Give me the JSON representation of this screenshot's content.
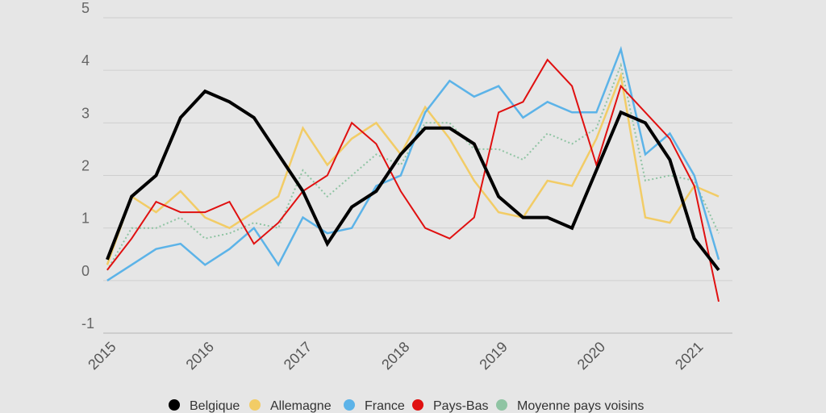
{
  "chart_data": {
    "type": "line",
    "title": "",
    "xlabel": "",
    "ylabel": "",
    "ylim": [
      -1,
      5
    ],
    "yticks": [
      "5",
      "4",
      "3",
      "2",
      "1",
      "0",
      "-1"
    ],
    "x_tick_labels": [
      "2015",
      "2016",
      "2017",
      "2018",
      "2019",
      "2020",
      "2021"
    ],
    "x": [
      2015.0,
      2015.25,
      2015.5,
      2015.75,
      2016.0,
      2016.25,
      2016.5,
      2016.75,
      2017.0,
      2017.25,
      2017.5,
      2017.75,
      2018.0,
      2018.25,
      2018.5,
      2018.75,
      2019.0,
      2019.25,
      2019.5,
      2019.75,
      2020.0,
      2020.25,
      2020.5,
      2020.75,
      2021.0,
      2021.25
    ],
    "grid": true,
    "legend_position": "bottom",
    "series": [
      {
        "name": "Belgique",
        "color": "#000000",
        "dash": "solid",
        "width": 4,
        "values": [
          0.4,
          1.6,
          2.0,
          3.1,
          3.6,
          3.4,
          3.1,
          2.4,
          1.7,
          0.7,
          1.4,
          1.7,
          2.4,
          2.9,
          2.9,
          2.6,
          1.6,
          1.2,
          1.2,
          1.0,
          2.1,
          3.2,
          3.0,
          2.3,
          0.8,
          0.2
        ]
      },
      {
        "name": "Allemagne",
        "color": "#f2cc66",
        "dash": "solid",
        "width": 2.5,
        "values": [
          0.3,
          1.6,
          1.3,
          1.7,
          1.2,
          1.0,
          1.3,
          1.6,
          2.9,
          2.2,
          2.7,
          3.0,
          2.4,
          3.3,
          2.7,
          1.9,
          1.3,
          1.2,
          1.9,
          1.8,
          2.7,
          3.9,
          1.2,
          1.1,
          1.8,
          1.6
        ]
      },
      {
        "name": "France",
        "color": "#5cb3e8",
        "dash": "solid",
        "width": 2.5,
        "values": [
          0.0,
          0.3,
          0.6,
          0.7,
          0.3,
          0.6,
          1.0,
          0.3,
          1.2,
          0.9,
          1.0,
          1.8,
          2.0,
          3.2,
          3.8,
          3.5,
          3.7,
          3.1,
          3.4,
          3.2,
          3.2,
          4.4,
          2.4,
          2.8,
          2.0,
          0.4
        ]
      },
      {
        "name": "Pays-Bas",
        "color": "#e01010",
        "dash": "solid",
        "width": 2,
        "values": [
          0.2,
          0.8,
          1.5,
          1.3,
          1.3,
          1.5,
          0.7,
          1.1,
          1.7,
          2.0,
          3.0,
          2.6,
          1.7,
          1.0,
          0.8,
          1.2,
          3.2,
          3.4,
          4.2,
          3.7,
          2.2,
          3.7,
          3.2,
          2.7,
          1.8,
          -0.4
        ]
      },
      {
        "name": "Moyenne pays voisins",
        "color": "#8fc4a3",
        "dash": "dotted",
        "width": 2,
        "values": [
          0.2,
          1.0,
          1.0,
          1.2,
          0.8,
          0.9,
          1.1,
          1.0,
          2.1,
          1.6,
          2.0,
          2.4,
          2.2,
          3.0,
          3.0,
          2.5,
          2.5,
          2.3,
          2.8,
          2.6,
          2.9,
          4.1,
          1.9,
          2.0,
          1.9,
          0.9
        ]
      }
    ]
  }
}
